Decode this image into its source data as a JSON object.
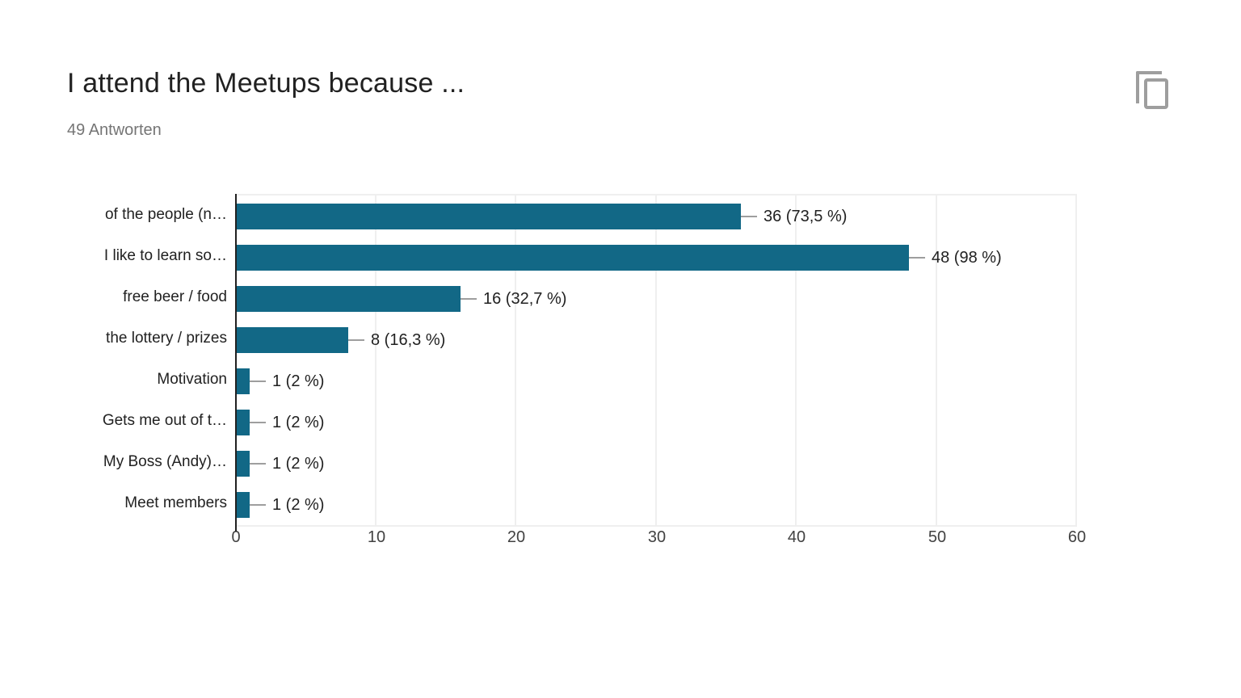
{
  "header": {
    "title": "I attend the Meetups because ...",
    "subtitle": "49 Antworten"
  },
  "toolbar": {
    "copy_icon": "copy-icon"
  },
  "colors": {
    "bar": "#126886",
    "leader_line": "#9e9e9e",
    "gridline": "#efefef",
    "axis_line": "#212121",
    "title_text": "#212121",
    "subtitle_text": "#757575",
    "tick_text": "#424242",
    "label_text": "#212121",
    "icon": "#9e9e9e",
    "background": "#ffffff"
  },
  "chart_data": {
    "type": "bar",
    "orientation": "horizontal",
    "title": "I attend the Meetups because ...",
    "subtitle": "49 Antworten",
    "categories": [
      "of the people (n…",
      "I like to learn so…",
      "free beer / food",
      "the lottery / prizes",
      "Motivation",
      "Gets me out of t…",
      "My Boss (Andy)…",
      "Meet members"
    ],
    "values": [
      36,
      48,
      16,
      8,
      1,
      1,
      1,
      1
    ],
    "value_labels": [
      "36 (73,5 %)",
      "48 (98 %)",
      "16 (32,7 %)",
      "8 (16,3 %)",
      "1 (2 %)",
      "1 (2 %)",
      "1 (2 %)",
      "1 (2 %)"
    ],
    "xlabel": "",
    "ylabel": "",
    "xlim": [
      0,
      60
    ],
    "xticks": [
      0,
      10,
      20,
      30,
      40,
      50,
      60
    ],
    "grid": true,
    "legend": false
  }
}
